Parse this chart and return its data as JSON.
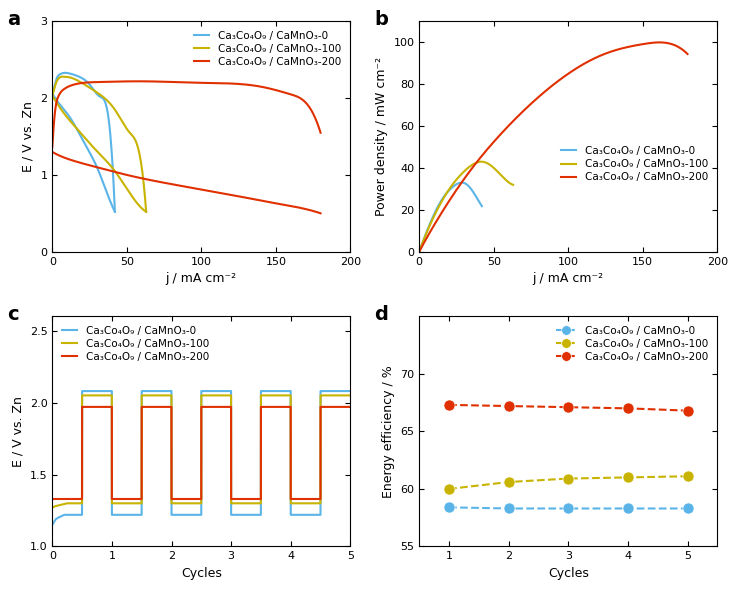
{
  "colors": {
    "blue": "#5ab4e8",
    "yellow": "#c8b400",
    "red": "#e03000"
  },
  "panel_a": {
    "xlabel": "j / mA cm⁻²",
    "ylabel": "E / V vs. Zn",
    "xlim": [
      0,
      200
    ],
    "ylim": [
      0,
      3
    ],
    "yticks": [
      0,
      1,
      2,
      3
    ],
    "xticks": [
      0,
      50,
      100,
      150,
      200
    ],
    "legend_labels": [
      "Ca₃Co₄O₉ / CaMnO₃-0",
      "Ca₃Co₄O₉ / CaMnO₃-100",
      "Ca₃Co₄O₉ / CaMnO₃-200"
    ]
  },
  "panel_b": {
    "xlabel": "j / mA cm⁻²",
    "ylabel": "Power density / mW cm⁻²",
    "xlim": [
      0,
      200
    ],
    "ylim": [
      0,
      110
    ],
    "yticks": [
      0,
      20,
      40,
      60,
      80,
      100
    ],
    "xticks": [
      0,
      50,
      100,
      150,
      200
    ],
    "legend_labels": [
      "Ca₃Co₄O₉ / CaMnO₃-0",
      "Ca₃Co₄O₉ / CaMnO₃-100",
      "Ca₃Co₄O₉ / CaMnO₃-200"
    ]
  },
  "panel_c": {
    "xlabel": "Cycles",
    "ylabel": "E / V vs. Zn",
    "xlim": [
      0,
      5
    ],
    "ylim": [
      1.0,
      2.6
    ],
    "yticks": [
      1.0,
      1.5,
      2.0,
      2.5
    ],
    "xticks": [
      0,
      1,
      2,
      3,
      4,
      5
    ],
    "legend_labels": [
      "Ca₃Co₄O₉ / CaMnO₃-0",
      "Ca₃Co₄O₉ / CaMnO₃-100",
      "Ca₃Co₄O₉ / CaMnO₃-200"
    ],
    "blue_discharge": 1.22,
    "blue_charge": 2.08,
    "yellow_discharge": 1.3,
    "yellow_charge": 2.05,
    "red_discharge": 1.33,
    "red_charge": 1.97
  },
  "panel_d": {
    "xlabel": "Cycles",
    "ylabel": "Energy efficiency / %",
    "xlim": [
      0.5,
      5.5
    ],
    "ylim": [
      55,
      75
    ],
    "yticks": [
      55,
      60,
      65,
      70
    ],
    "xticks": [
      1,
      2,
      3,
      4,
      5
    ],
    "legend_labels": [
      "Ca₃Co₄O₉ / CaMnO₃-0",
      "Ca₃Co₄O₉ / CaMnO₃-100",
      "Ca₃Co₄O₉ / CaMnO₃-200"
    ],
    "blue_values": [
      58.4,
      58.3,
      58.3,
      58.3,
      58.3
    ],
    "yellow_values": [
      60.0,
      60.6,
      60.9,
      61.0,
      61.1
    ],
    "red_values": [
      67.3,
      67.2,
      67.1,
      67.0,
      66.8
    ]
  }
}
